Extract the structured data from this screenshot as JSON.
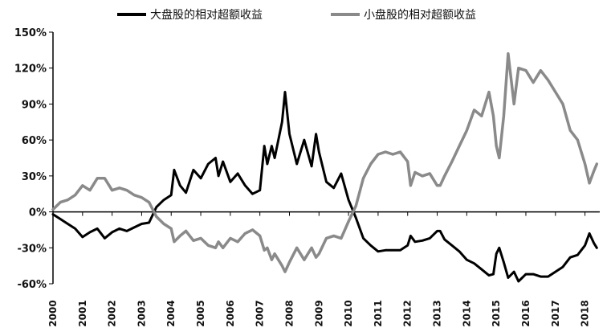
{
  "chart_data": {
    "type": "line",
    "title": "",
    "xlabel": "",
    "ylabel": "",
    "xlim": [
      2000,
      2018.5
    ],
    "ylim": [
      -60,
      150
    ],
    "y_unit": "%",
    "grid": false,
    "legend_position": "top",
    "x_tick_labels": [
      "2000",
      "2001",
      "2002",
      "2003",
      "2004",
      "2005",
      "2006",
      "2007",
      "2008",
      "2009",
      "2010",
      "2011",
      "2012",
      "2013",
      "2014",
      "2015",
      "2016",
      "2017",
      "2018"
    ],
    "y_tick_labels": [
      "150%",
      "120%",
      "90%",
      "60%",
      "30%",
      "0%",
      "-30%",
      "-60%"
    ],
    "y_tick_values": [
      150,
      120,
      90,
      60,
      30,
      0,
      -30,
      -60
    ],
    "series": [
      {
        "name": "大盘股的相对超额收益",
        "color": "#000000",
        "points": [
          [
            2000.0,
            -2
          ],
          [
            2000.25,
            -6
          ],
          [
            2000.5,
            -10
          ],
          [
            2000.75,
            -14
          ],
          [
            2001.0,
            -21
          ],
          [
            2001.25,
            -17
          ],
          [
            2001.5,
            -14
          ],
          [
            2001.75,
            -22
          ],
          [
            2002.0,
            -17
          ],
          [
            2002.25,
            -14
          ],
          [
            2002.5,
            -16
          ],
          [
            2002.75,
            -13
          ],
          [
            2003.0,
            -10
          ],
          [
            2003.25,
            -9
          ],
          [
            2003.5,
            4
          ],
          [
            2003.75,
            10
          ],
          [
            2004.0,
            14
          ],
          [
            2004.1,
            35
          ],
          [
            2004.3,
            22
          ],
          [
            2004.5,
            16
          ],
          [
            2004.75,
            35
          ],
          [
            2005.0,
            28
          ],
          [
            2005.25,
            40
          ],
          [
            2005.5,
            45
          ],
          [
            2005.6,
            30
          ],
          [
            2005.75,
            42
          ],
          [
            2006.0,
            25
          ],
          [
            2006.25,
            32
          ],
          [
            2006.5,
            22
          ],
          [
            2006.75,
            15
          ],
          [
            2007.0,
            18
          ],
          [
            2007.15,
            55
          ],
          [
            2007.25,
            40
          ],
          [
            2007.4,
            55
          ],
          [
            2007.5,
            45
          ],
          [
            2007.75,
            75
          ],
          [
            2007.85,
            100
          ],
          [
            2008.0,
            65
          ],
          [
            2008.25,
            40
          ],
          [
            2008.5,
            60
          ],
          [
            2008.75,
            38
          ],
          [
            2008.9,
            65
          ],
          [
            2009.0,
            50
          ],
          [
            2009.25,
            25
          ],
          [
            2009.5,
            20
          ],
          [
            2009.75,
            32
          ],
          [
            2010.0,
            10
          ],
          [
            2010.25,
            -5
          ],
          [
            2010.5,
            -22
          ],
          [
            2010.75,
            -28
          ],
          [
            2011.0,
            -33
          ],
          [
            2011.25,
            -32
          ],
          [
            2011.5,
            -32
          ],
          [
            2011.75,
            -32
          ],
          [
            2012.0,
            -28
          ],
          [
            2012.1,
            -20
          ],
          [
            2012.25,
            -25
          ],
          [
            2012.5,
            -24
          ],
          [
            2012.75,
            -22
          ],
          [
            2013.0,
            -16
          ],
          [
            2013.1,
            -16
          ],
          [
            2013.25,
            -23
          ],
          [
            2013.5,
            -28
          ],
          [
            2013.75,
            -33
          ],
          [
            2014.0,
            -40
          ],
          [
            2014.25,
            -43
          ],
          [
            2014.5,
            -48
          ],
          [
            2014.75,
            -53
          ],
          [
            2014.9,
            -52
          ],
          [
            2015.0,
            -35
          ],
          [
            2015.1,
            -30
          ],
          [
            2015.25,
            -42
          ],
          [
            2015.4,
            -55
          ],
          [
            2015.6,
            -50
          ],
          [
            2015.75,
            -58
          ],
          [
            2016.0,
            -52
          ],
          [
            2016.25,
            -52
          ],
          [
            2016.5,
            -54
          ],
          [
            2016.75,
            -54
          ],
          [
            2017.0,
            -50
          ],
          [
            2017.25,
            -46
          ],
          [
            2017.5,
            -38
          ],
          [
            2017.75,
            -36
          ],
          [
            2018.0,
            -28
          ],
          [
            2018.15,
            -18
          ],
          [
            2018.3,
            -26
          ],
          [
            2018.4,
            -30
          ]
        ]
      },
      {
        "name": "小盘股的相对超额收益",
        "color": "#8a8a8a",
        "points": [
          [
            2000.0,
            2
          ],
          [
            2000.25,
            8
          ],
          [
            2000.5,
            10
          ],
          [
            2000.75,
            14
          ],
          [
            2001.0,
            22
          ],
          [
            2001.25,
            18
          ],
          [
            2001.5,
            28
          ],
          [
            2001.75,
            28
          ],
          [
            2002.0,
            18
          ],
          [
            2002.25,
            20
          ],
          [
            2002.5,
            18
          ],
          [
            2002.75,
            14
          ],
          [
            2003.0,
            12
          ],
          [
            2003.25,
            8
          ],
          [
            2003.5,
            -4
          ],
          [
            2003.75,
            -10
          ],
          [
            2004.0,
            -14
          ],
          [
            2004.1,
            -25
          ],
          [
            2004.3,
            -20
          ],
          [
            2004.5,
            -16
          ],
          [
            2004.75,
            -24
          ],
          [
            2005.0,
            -22
          ],
          [
            2005.25,
            -28
          ],
          [
            2005.5,
            -30
          ],
          [
            2005.6,
            -25
          ],
          [
            2005.75,
            -30
          ],
          [
            2006.0,
            -22
          ],
          [
            2006.25,
            -25
          ],
          [
            2006.5,
            -18
          ],
          [
            2006.75,
            -15
          ],
          [
            2007.0,
            -20
          ],
          [
            2007.15,
            -32
          ],
          [
            2007.25,
            -30
          ],
          [
            2007.4,
            -40
          ],
          [
            2007.5,
            -35
          ],
          [
            2007.75,
            -45
          ],
          [
            2007.85,
            -50
          ],
          [
            2008.0,
            -42
          ],
          [
            2008.25,
            -30
          ],
          [
            2008.5,
            -40
          ],
          [
            2008.75,
            -30
          ],
          [
            2008.9,
            -38
          ],
          [
            2009.0,
            -35
          ],
          [
            2009.25,
            -22
          ],
          [
            2009.5,
            -20
          ],
          [
            2009.75,
            -22
          ],
          [
            2010.0,
            -8
          ],
          [
            2010.25,
            5
          ],
          [
            2010.5,
            28
          ],
          [
            2010.75,
            40
          ],
          [
            2011.0,
            48
          ],
          [
            2011.25,
            50
          ],
          [
            2011.5,
            48
          ],
          [
            2011.75,
            50
          ],
          [
            2012.0,
            42
          ],
          [
            2012.1,
            22
          ],
          [
            2012.25,
            33
          ],
          [
            2012.5,
            30
          ],
          [
            2012.75,
            32
          ],
          [
            2013.0,
            22
          ],
          [
            2013.1,
            22
          ],
          [
            2013.25,
            30
          ],
          [
            2013.5,
            42
          ],
          [
            2013.75,
            55
          ],
          [
            2014.0,
            68
          ],
          [
            2014.25,
            85
          ],
          [
            2014.5,
            80
          ],
          [
            2014.75,
            100
          ],
          [
            2014.9,
            80
          ],
          [
            2015.0,
            55
          ],
          [
            2015.1,
            45
          ],
          [
            2015.25,
            80
          ],
          [
            2015.4,
            132
          ],
          [
            2015.6,
            90
          ],
          [
            2015.75,
            120
          ],
          [
            2016.0,
            118
          ],
          [
            2016.25,
            108
          ],
          [
            2016.5,
            118
          ],
          [
            2016.75,
            110
          ],
          [
            2017.0,
            100
          ],
          [
            2017.25,
            90
          ],
          [
            2017.5,
            68
          ],
          [
            2017.75,
            60
          ],
          [
            2018.0,
            40
          ],
          [
            2018.15,
            24
          ],
          [
            2018.3,
            34
          ],
          [
            2018.4,
            40
          ]
        ]
      }
    ]
  }
}
